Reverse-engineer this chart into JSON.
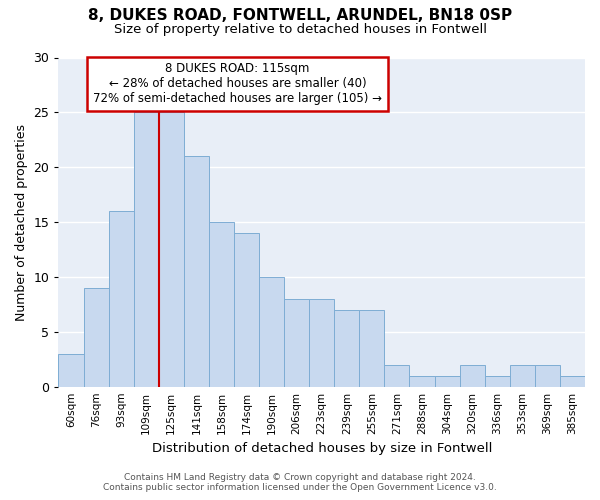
{
  "title1": "8, DUKES ROAD, FONTWELL, ARUNDEL, BN18 0SP",
  "title2": "Size of property relative to detached houses in Fontwell",
  "xlabel": "Distribution of detached houses by size in Fontwell",
  "ylabel": "Number of detached properties",
  "categories": [
    "60sqm",
    "76sqm",
    "93sqm",
    "109sqm",
    "125sqm",
    "141sqm",
    "158sqm",
    "174sqm",
    "190sqm",
    "206sqm",
    "223sqm",
    "239sqm",
    "255sqm",
    "271sqm",
    "288sqm",
    "304sqm",
    "320sqm",
    "336sqm",
    "353sqm",
    "369sqm",
    "385sqm"
  ],
  "values": [
    3,
    9,
    16,
    25,
    25,
    21,
    15,
    14,
    10,
    8,
    8,
    7,
    7,
    2,
    1,
    1,
    2,
    1,
    2,
    2,
    1
  ],
  "bar_color": "#c8d9ef",
  "bar_edgecolor": "#7eadd4",
  "vline_color": "#cc0000",
  "ylim": [
    0,
    30
  ],
  "yticks": [
    0,
    5,
    10,
    15,
    20,
    25,
    30
  ],
  "annotation_title": "8 DUKES ROAD: 115sqm",
  "annotation_line1": "← 28% of detached houses are smaller (40)",
  "annotation_line2": "72% of semi-detached houses are larger (105) →",
  "annotation_box_color": "#ffffff",
  "annotation_box_edgecolor": "#cc0000",
  "footer1": "Contains HM Land Registry data © Crown copyright and database right 2024.",
  "footer2": "Contains public sector information licensed under the Open Government Licence v3.0.",
  "background_color": "#ffffff",
  "plot_bg_color": "#e8eef7",
  "grid_color": "#ffffff"
}
